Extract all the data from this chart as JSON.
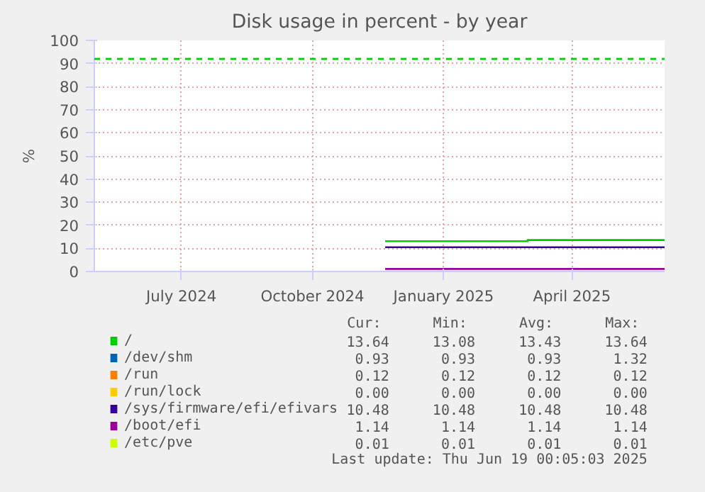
{
  "chart_data": {
    "type": "step",
    "title": "Disk usage in percent - by year",
    "ylabel": "%",
    "xlim": [
      "2024-05-15",
      "2025-06-19"
    ],
    "xticks": [
      {
        "value": "2024-07-15",
        "label": "July 2024"
      },
      {
        "value": "2024-10-15",
        "label": "October 2024"
      },
      {
        "value": "2025-01-15",
        "label": "January 2025"
      },
      {
        "value": "2025-04-15",
        "label": "April 2025"
      }
    ],
    "ylim": [
      0,
      100
    ],
    "yticks": [
      0,
      10,
      20,
      30,
      40,
      50,
      60,
      70,
      80,
      90,
      100
    ],
    "grid": true,
    "legend": "bottom",
    "series": [
      {
        "name": "/",
        "color": "#00cc00",
        "x": [
          "2024-12-05",
          "2025-03-15",
          "2025-06-19"
        ],
        "values": [
          13.1,
          13.6,
          13.6
        ]
      },
      {
        "name": "/dev/shm",
        "color": "#0066b3"
      },
      {
        "name": "/run",
        "color": "#ff8000"
      },
      {
        "name": "/run/lock",
        "color": "#ffcc00"
      },
      {
        "name": "/sys/firmware/efi/efivars",
        "color": "#330099",
        "x": [
          "2024-12-05",
          "2025-06-19"
        ],
        "values": [
          10.5,
          10.5
        ]
      },
      {
        "name": "/boot/efi",
        "color": "#990099",
        "x": [
          "2024-12-05",
          "2025-06-19"
        ],
        "values": [
          1.1,
          1.1
        ]
      },
      {
        "name": "/etc/pve",
        "color": "#ccff00"
      }
    ],
    "ref_lines": [
      {
        "axis": "y",
        "value": 92,
        "color": "#00cc00",
        "line_style": "dashed"
      }
    ],
    "annotations": [
      "Cur:",
      "Min:",
      "Avg:",
      "Max:",
      "13.64",
      "13.08",
      "13.43",
      "13.64",
      "0.93",
      "0.93",
      "0.93",
      "1.32",
      "0.12",
      "0.12",
      "0.12",
      "0.12",
      "0.00",
      "0.00",
      "0.00",
      "0.00",
      "10.48",
      "10.48",
      "10.48",
      "10.48",
      "1.14",
      "1.14",
      "1.14",
      "1.14",
      "0.01",
      "0.01",
      "0.01",
      "0.01",
      "Last update: Thu Jun 19 00:05:03 2025"
    ]
  }
}
